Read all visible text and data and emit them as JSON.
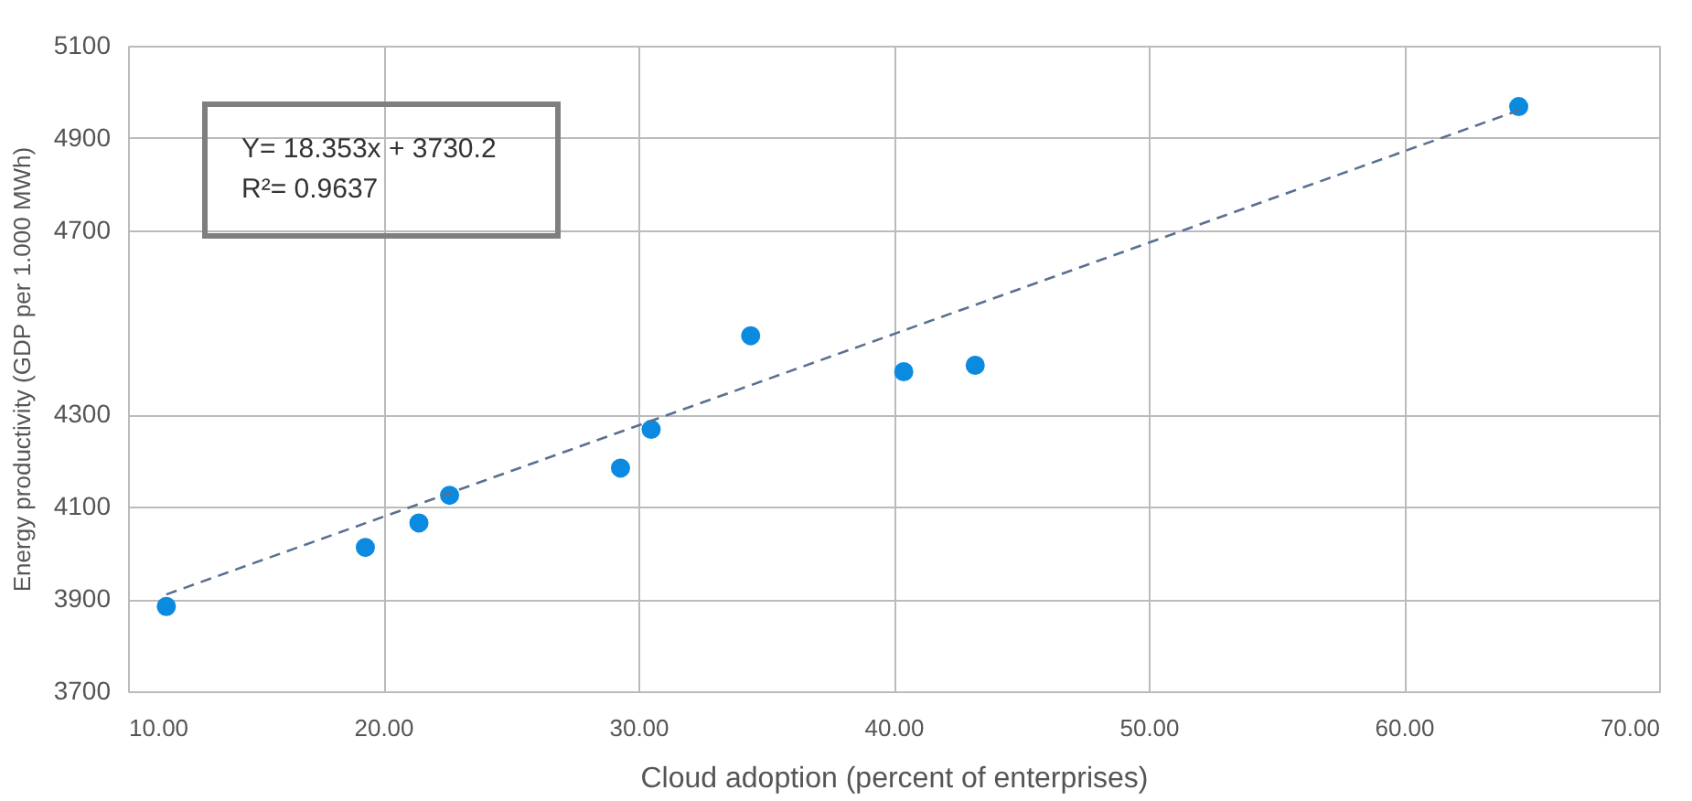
{
  "chart_data": {
    "type": "scatter",
    "xlabel": "Cloud adoption (percent of enterprises)",
    "ylabel": "Energy productivity (GDP per 1.000 MWh)",
    "xlim": [
      10,
      70
    ],
    "ylim": [
      3700,
      5100
    ],
    "xticks": [
      {
        "value": 10,
        "label": "10.00"
      },
      {
        "value": 20,
        "label": "20.00"
      },
      {
        "value": 30,
        "label": "30.00"
      },
      {
        "value": 40,
        "label": "40.00"
      },
      {
        "value": 50,
        "label": "50.00"
      },
      {
        "value": 60,
        "label": "60.00"
      },
      {
        "value": 70,
        "label": "70.00"
      }
    ],
    "yticks": [
      3700,
      3900,
      4100,
      4300,
      4700,
      4900,
      5100
    ],
    "grid": true,
    "marker": "circle",
    "annotations": [
      "Y= 18.353x + 3730.2",
      "R²= 0.9637"
    ],
    "series": [
      {
        "color": "#0a8be0",
        "x": [
          11.5,
          19.3,
          21.4,
          22.6,
          29.3,
          30.5,
          34.4,
          40.4,
          43.2,
          64.5
        ],
        "values": [
          3884,
          4012,
          4065,
          4125,
          4184,
          4268,
          4471,
          4393,
          4407,
          4968
        ]
      },
      {
        "type": "line",
        "color": "#5a7090",
        "line_style": "dashed",
        "marker": "none",
        "x": [
          11.5,
          64.5
        ],
        "values": [
          3910,
          4960
        ]
      }
    ]
  }
}
